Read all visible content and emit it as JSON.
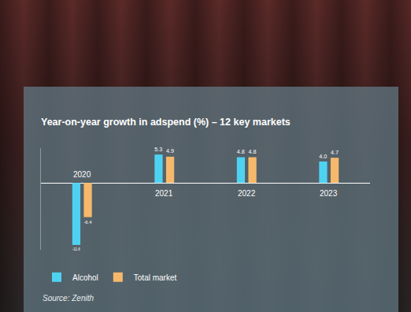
{
  "chart_data": {
    "type": "bar",
    "title": "Year-on-year growth in adspend (%) – 12 key markets",
    "categories": [
      "2020",
      "2021",
      "2022",
      "2023"
    ],
    "series": [
      {
        "name": "Alcohol",
        "color": "#4fd2f2",
        "values": [
          -11.6,
          5.3,
          4.8,
          4.0
        ],
        "value_labels": [
          "-11.6",
          "5.3",
          "4.8",
          "4.0"
        ]
      },
      {
        "name": "Total market",
        "color": "#f6b96c",
        "values": [
          -6.4,
          4.9,
          4.8,
          4.7
        ],
        "value_labels": [
          "-6.4",
          "4.9",
          "4.8",
          "4.7"
        ]
      }
    ],
    "ylim": [
      -12.5,
      6.5
    ],
    "yticks": [
      0
    ],
    "grid": true,
    "data_labels": true,
    "tick_labels": false,
    "legend": "bottom left",
    "annotations": [
      "Source: Zenith"
    ]
  }
}
